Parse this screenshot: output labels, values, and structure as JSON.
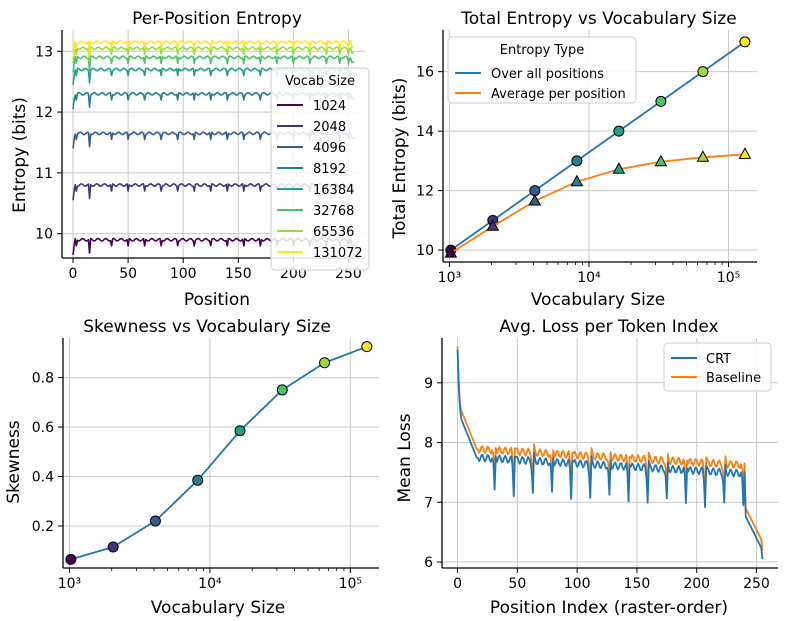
{
  "colors": {
    "viridis": [
      "#440154",
      "#46327e",
      "#365c8d",
      "#277f8e",
      "#1fa187",
      "#4ac16d",
      "#a0da39",
      "#fde725"
    ],
    "blue": "#1f77b4",
    "orange": "#ff7f0e",
    "grid": "#c9c9c9"
  },
  "chart_data": [
    {
      "type": "line",
      "title": "Per-Position Entropy",
      "xlabel": "Position",
      "ylabel": "Entropy (bits)",
      "xlim": [
        -10,
        265
      ],
      "ylim": [
        9.6,
        13.35
      ],
      "xticks": [
        0,
        50,
        100,
        150,
        200,
        250
      ],
      "yticks": [
        10,
        11,
        12,
        13
      ],
      "legend_title": "Vocab Size",
      "legend_loc": "right",
      "series": [
        {
          "name": "1024",
          "base": 9.9
        },
        {
          "name": "2048",
          "base": 10.8
        },
        {
          "name": "4096",
          "base": 11.65
        },
        {
          "name": "8192",
          "base": 12.3
        },
        {
          "name": "16384",
          "base": 12.7
        },
        {
          "name": "32768",
          "base": 12.9
        },
        {
          "name": "65536",
          "base": 13.05
        },
        {
          "name": "131072",
          "base": 13.15
        }
      ]
    },
    {
      "type": "line",
      "title": "Total Entropy vs Vocabulary Size",
      "xlabel": "Vocabulary Size",
      "ylabel": "Total Entropy (bits)",
      "xscale": "log",
      "xlim": [
        900,
        160000
      ],
      "ylim": [
        9.6,
        17.4
      ],
      "xticks": [
        "10³",
        "10⁴",
        "10⁵"
      ],
      "yticks": [
        10,
        12,
        14,
        16
      ],
      "legend_title": "Entropy Type",
      "legend_loc": "upper left",
      "x": [
        1024,
        2048,
        4096,
        8192,
        16384,
        32768,
        65536,
        131072
      ],
      "series": [
        {
          "name": "Over all positions",
          "values": [
            10,
            11,
            12,
            13,
            14,
            15,
            16,
            17
          ],
          "marker": "circle"
        },
        {
          "name": "Average per position",
          "values": [
            9.9,
            10.8,
            11.65,
            12.3,
            12.72,
            12.97,
            13.12,
            13.22
          ],
          "marker": "triangle"
        }
      ]
    },
    {
      "type": "line",
      "title": "Skewness vs Vocabulary Size",
      "xlabel": "Vocabulary Size",
      "ylabel": "Skewness",
      "xscale": "log",
      "xlim": [
        900,
        160000
      ],
      "ylim": [
        0.03,
        0.96
      ],
      "xticks": [
        "10³",
        "10⁴",
        "10⁵"
      ],
      "yticks": [
        0.2,
        0.4,
        0.6,
        0.8
      ],
      "x": [
        1024,
        2048,
        4096,
        8192,
        16384,
        32768,
        65536,
        131072
      ],
      "series": [
        {
          "name": "Skewness",
          "values": [
            0.065,
            0.115,
            0.22,
            0.385,
            0.585,
            0.75,
            0.86,
            0.925
          ]
        }
      ]
    },
    {
      "type": "line",
      "title": "Avg. Loss per Token Index",
      "xlabel": "Position Index (raster-order)",
      "ylabel": "Mean Loss",
      "xlim": [
        -13,
        268
      ],
      "ylim": [
        5.9,
        9.75
      ],
      "xticks": [
        0,
        50,
        100,
        150,
        200,
        250
      ],
      "yticks": [
        6,
        7,
        8,
        9
      ],
      "legend_loc": "upper right",
      "series": [
        {
          "name": "CRT"
        },
        {
          "name": "Baseline"
        }
      ]
    }
  ]
}
